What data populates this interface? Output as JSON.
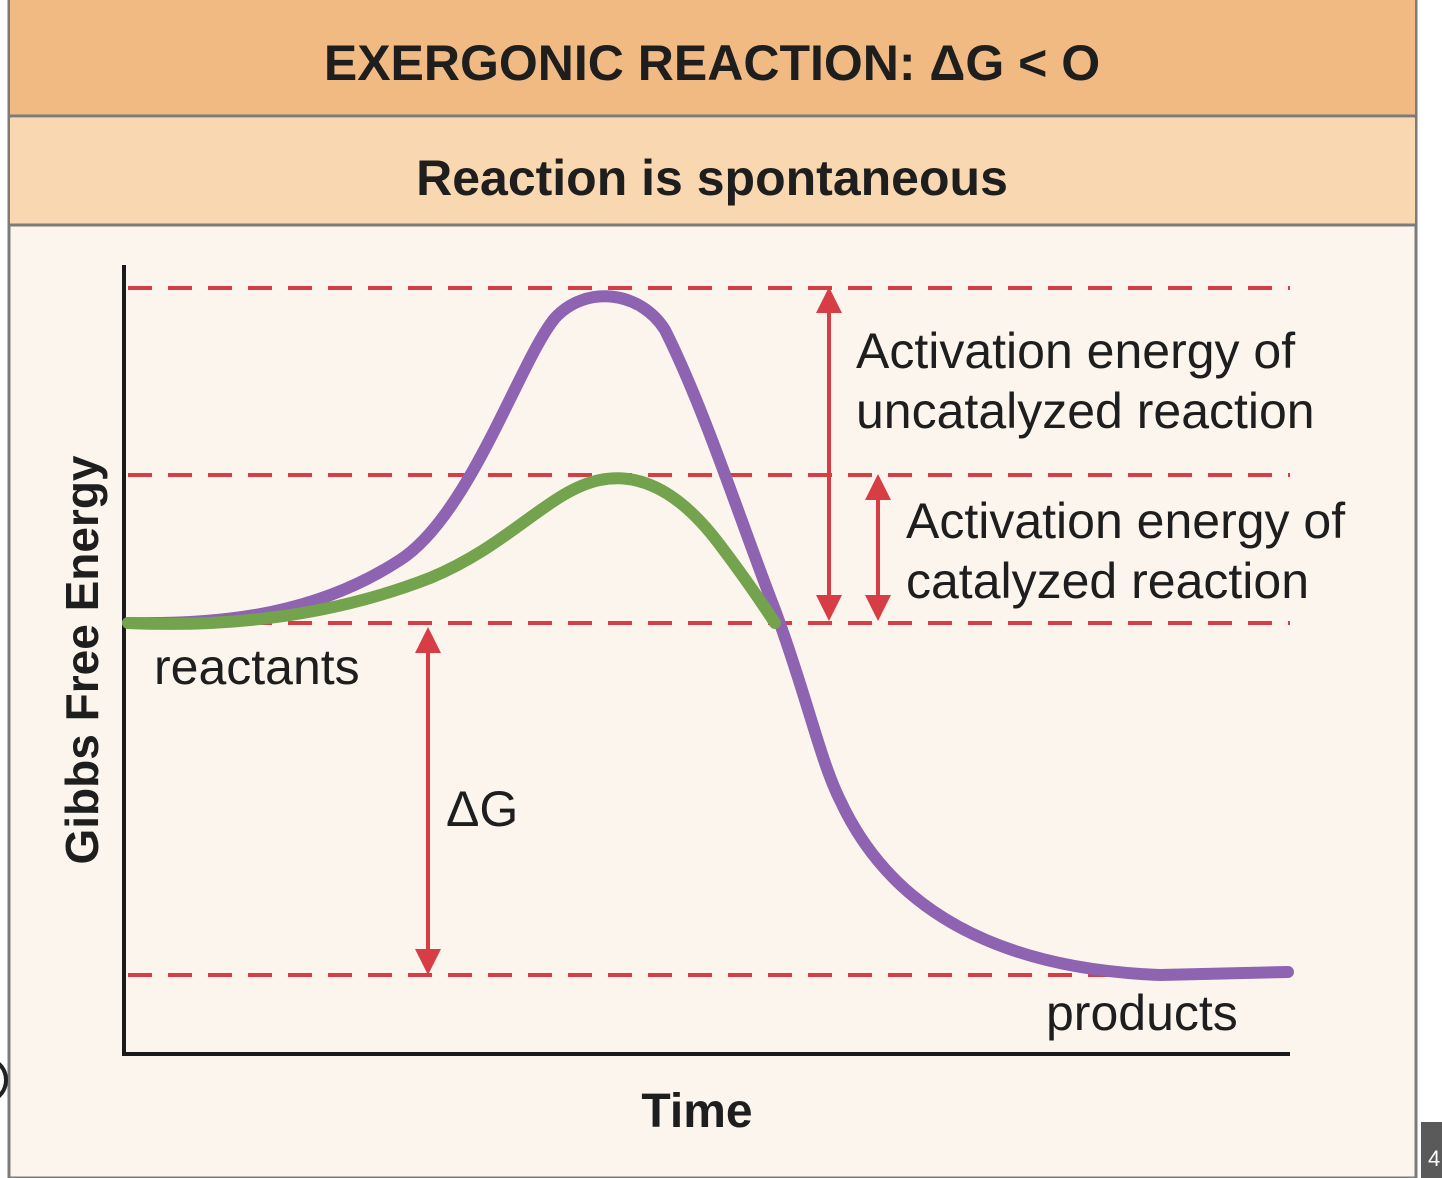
{
  "header": {
    "title": "EXERGONIC REACTION: ΔG < O",
    "subtitle": "Reaction is spontaneous"
  },
  "axes": {
    "ylabel": "Gibbs Free Energy",
    "xlabel": "Time"
  },
  "levels": {
    "reactants_label": "reactants",
    "products_label": "products",
    "delta_g_label": "ΔG"
  },
  "annotations": {
    "uncatalyzed_line1": "Activation energy of",
    "uncatalyzed_line2": "uncatalyzed reaction",
    "catalyzed_line1": "Activation energy of",
    "catalyzed_line2": "catalyzed reaction"
  },
  "curves": {
    "uncatalyzed_color": "#8e63b1",
    "catalyzed_color": "#74a34d"
  },
  "colors": {
    "header_bg": "#f1ba82",
    "plot_bg": "#fcf5ee",
    "frame": "#7b7b7b",
    "dashed_lines": "#d63d45",
    "arrows": "#d63d45",
    "axis": "#1a1a1a"
  },
  "corner": {
    "page_badge": "4"
  }
}
